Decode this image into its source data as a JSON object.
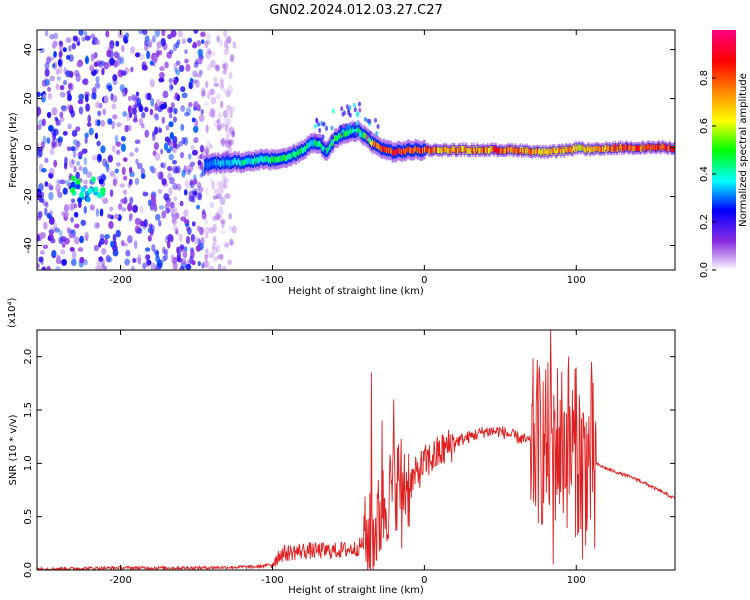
{
  "figure": {
    "title": "GN02.2024.012.03.27.C27"
  },
  "chart_data": [
    {
      "type": "heatmap",
      "title": "GN02.2024.012.03.27.C27",
      "xlabel": "Height of straight line (km)",
      "ylabel": "Frequency (Hz)",
      "xlim": [
        -255,
        165
      ],
      "ylim": [
        -50,
        48
      ],
      "x_ticks": [
        -200,
        -100,
        0,
        100
      ],
      "y_ticks": [
        -40,
        -20,
        0,
        20,
        40
      ],
      "colorbar": {
        "label": "Normalized spectral amplitude",
        "range": [
          0.0,
          1.0
        ],
        "ticks": [
          0.0,
          0.2,
          0.4,
          0.6,
          0.8
        ],
        "colors": [
          "#ffffff",
          "#8a2be2",
          "#0000ff",
          "#00ffff",
          "#00ff00",
          "#ffff00",
          "#ff8000",
          "#ff0000",
          "#ff0080"
        ]
      },
      "signal_track": {
        "x": [
          -145,
          -130,
          -120,
          -110,
          -100,
          -90,
          -80,
          -75,
          -70,
          -65,
          -60,
          -55,
          -50,
          -45,
          -40,
          -35,
          -30,
          -20,
          -10,
          0,
          20,
          40,
          60,
          80,
          95,
          100,
          110,
          130,
          165
        ],
        "frequency": [
          -7,
          -6,
          -6,
          -5,
          -5,
          -4,
          -1,
          2,
          2,
          -2,
          3,
          5,
          6,
          7,
          5,
          2,
          0,
          -2,
          -1,
          -1,
          -1,
          -1,
          -1,
          -2,
          -1,
          0,
          -1,
          0,
          0
        ],
        "amplitude": [
          0.35,
          0.4,
          0.45,
          0.45,
          0.5,
          0.5,
          0.5,
          0.45,
          0.5,
          0.45,
          0.55,
          0.5,
          0.5,
          0.45,
          0.6,
          0.8,
          0.85,
          0.9,
          0.9,
          0.85,
          0.8,
          0.85,
          0.85,
          0.8,
          0.75,
          0.7,
          0.8,
          0.9,
          0.9
        ]
      },
      "noise_region": {
        "x_range": [
          -255,
          -125
        ],
        "frequency_range": [
          -50,
          48
        ],
        "amplitude": [
          0.05,
          0.3
        ]
      },
      "hot_spot": {
        "x": -222,
        "frequency": -17,
        "amplitude": 0.4
      }
    },
    {
      "type": "line",
      "title": "",
      "xlabel": "Height of straight line (km)",
      "ylabel": "SNR (10 * v/v)",
      "y_multiplier": "(x10⁴)",
      "xlim": [
        -255,
        165
      ],
      "ylim": [
        0,
        2.25
      ],
      "x_ticks": [
        -200,
        -100,
        0,
        100
      ],
      "y_ticks": [
        0.0,
        0.5,
        1.0,
        1.5,
        2.0
      ],
      "series": [
        {
          "color": "#e02020",
          "x": [
            -255,
            -200,
            -150,
            -110,
            -101,
            -95,
            -80,
            -60,
            -45,
            -35,
            -30,
            -25,
            -20,
            -15,
            -10,
            -5,
            0,
            10,
            20,
            30,
            40,
            50,
            60,
            70,
            75,
            80,
            85,
            90,
            95,
            100,
            105,
            110,
            112,
            120,
            140,
            165
          ],
          "y": [
            0.01,
            0.02,
            0.02,
            0.03,
            0.05,
            0.15,
            0.18,
            0.18,
            0.2,
            0.3,
            0.45,
            0.65,
            0.8,
            0.85,
            0.8,
            0.9,
            1.0,
            1.1,
            1.2,
            1.25,
            1.3,
            1.3,
            1.25,
            1.2,
            1.2,
            1.15,
            1.2,
            1.2,
            1.15,
            1.1,
            1.0,
            1.0,
            1.0,
            0.95,
            0.85,
            0.67
          ]
        }
      ],
      "spikes": [
        {
          "x": -35,
          "y": 1.85
        },
        {
          "x": -28,
          "y": 1.4
        },
        {
          "x": -20,
          "y": 1.6
        },
        {
          "x": -15,
          "y": 0.2
        },
        {
          "x": 83,
          "y": 2.25
        },
        {
          "x": 85,
          "y": 0.05
        },
        {
          "x": 95,
          "y": 2.0
        },
        {
          "x": 100,
          "y": 1.9
        },
        {
          "x": 104,
          "y": 0.1
        },
        {
          "x": 110,
          "y": 1.95
        },
        {
          "x": 112,
          "y": 0.2
        }
      ]
    }
  ]
}
